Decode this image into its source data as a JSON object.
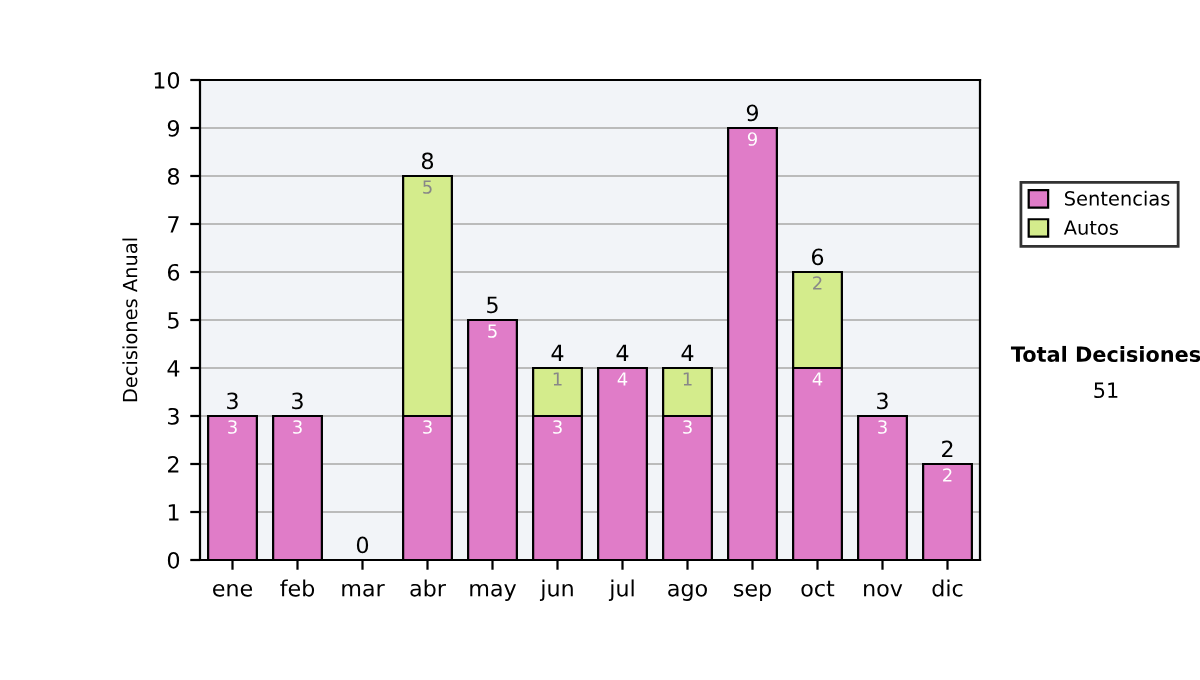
{
  "chart_data": {
    "type": "bar",
    "stacked": true,
    "ylabel": "Decisiones Anual",
    "categories": [
      "ene",
      "feb",
      "mar",
      "abr",
      "may",
      "jun",
      "jul",
      "ago",
      "sep",
      "oct",
      "nov",
      "dic"
    ],
    "series": [
      {
        "name": "Sentencias",
        "color": "#e07cc8",
        "values": [
          3,
          3,
          0,
          3,
          5,
          3,
          4,
          3,
          9,
          4,
          3,
          2
        ],
        "value_labels": [
          "3",
          "3",
          null,
          "3",
          "5",
          "3",
          "4",
          "3",
          "9",
          "4",
          "3",
          "2"
        ]
      },
      {
        "name": "Autos",
        "color": "#d4ec8c",
        "values": [
          0,
          0,
          0,
          5,
          0,
          1,
          0,
          1,
          0,
          2,
          0,
          0
        ],
        "value_labels": [
          null,
          null,
          null,
          "5",
          null,
          "1",
          null,
          "1",
          null,
          "2",
          null,
          null
        ]
      }
    ],
    "totals": [
      "3",
      "3",
      "0",
      "8",
      "5",
      "4",
      "4",
      "4",
      "9",
      "6",
      "3",
      "2"
    ],
    "ylim": [
      0,
      10
    ],
    "yticks": [
      0,
      1,
      2,
      3,
      4,
      5,
      6,
      7,
      8,
      9,
      10
    ],
    "grid": "y",
    "legend": "right",
    "annotations": [
      "Total Decisiones",
      "51"
    ]
  }
}
